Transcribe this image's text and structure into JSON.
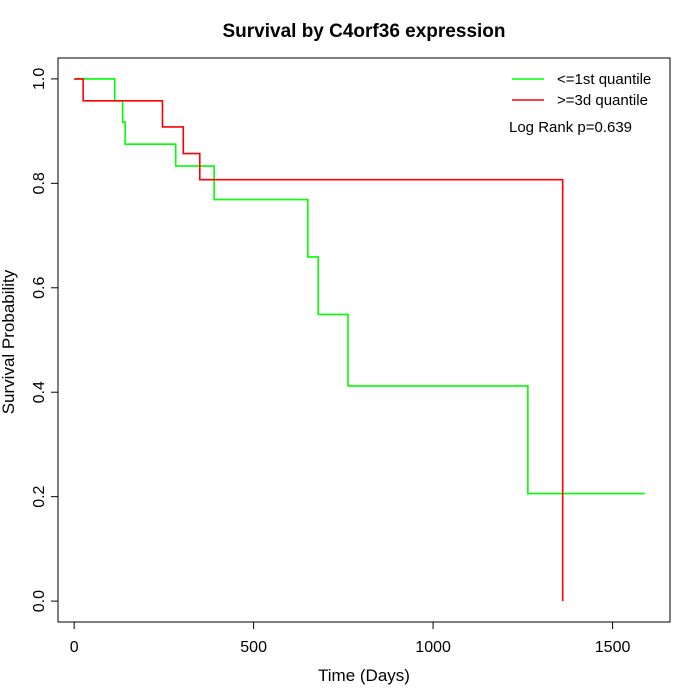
{
  "chart_data": {
    "type": "line",
    "title": "Survival by C4orf36 expression",
    "xlabel": "Time (Days)",
    "ylabel": "Survival Probability",
    "xlim": [
      -45,
      1660
    ],
    "ylim": [
      -0.04,
      1.04
    ],
    "x_ticks": [
      0,
      500,
      1000,
      1500
    ],
    "y_ticks": [
      0.0,
      0.2,
      0.4,
      0.6,
      0.8,
      1.0
    ],
    "x_tick_labels": [
      "0",
      "500",
      "1000",
      "1500"
    ],
    "y_tick_labels": [
      "0.0",
      "0.2",
      "0.4",
      "0.6",
      "0.8",
      "1.0"
    ],
    "grid": false,
    "legend_position": "top-right",
    "annotation": "Log Rank p=0.639",
    "series": [
      {
        "name": "<=1st quantile",
        "color": "#00ff00",
        "steps": [
          [
            0,
            1.0
          ],
          [
            113,
            0.958
          ],
          [
            135,
            0.917
          ],
          [
            142,
            0.875
          ],
          [
            283,
            0.833
          ],
          [
            390,
            0.769
          ],
          [
            651,
            0.659
          ],
          [
            680,
            0.549
          ],
          [
            763,
            0.412
          ],
          [
            1264,
            0.206
          ],
          [
            1590,
            0.206
          ]
        ]
      },
      {
        "name": ">=3d quantile",
        "color": "#ff0000",
        "steps": [
          [
            0,
            1.0
          ],
          [
            25,
            0.958
          ],
          [
            246,
            0.908
          ],
          [
            304,
            0.857
          ],
          [
            350,
            0.807
          ],
          [
            1361,
            0.0
          ]
        ]
      }
    ]
  }
}
